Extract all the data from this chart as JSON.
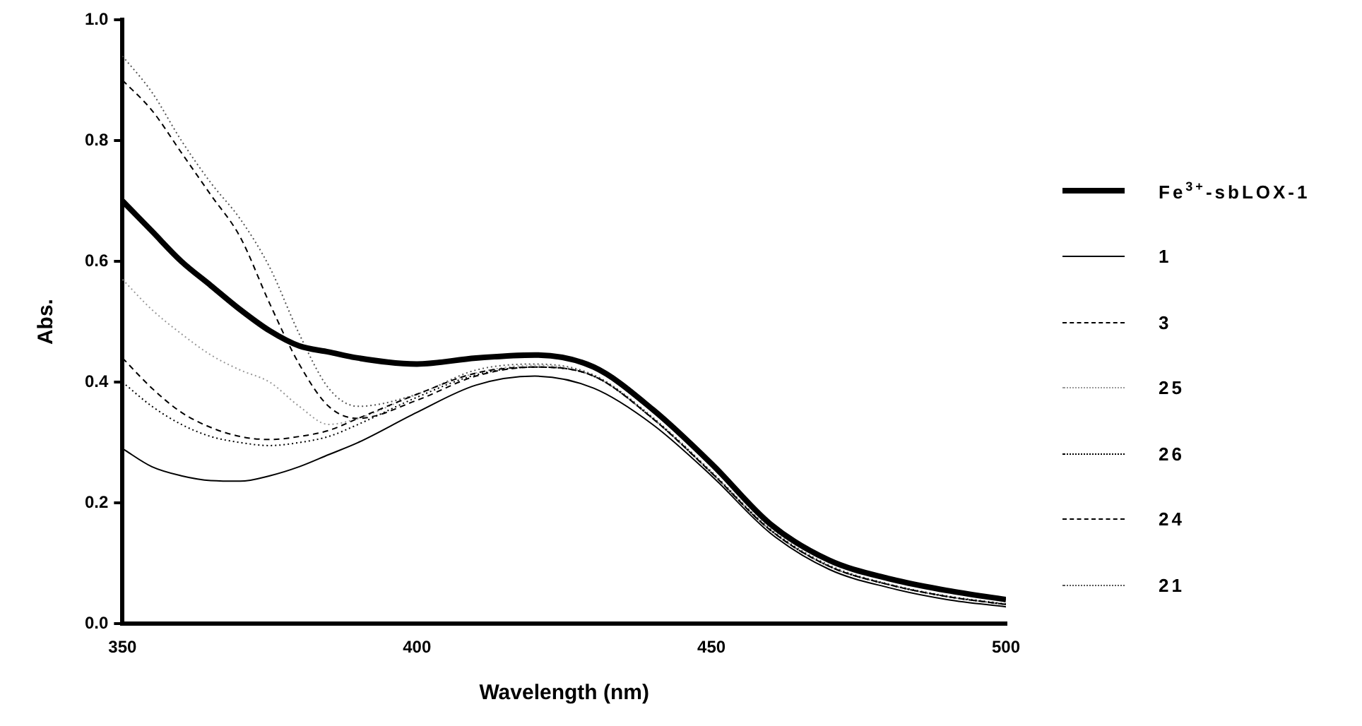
{
  "chart_data": {
    "type": "line",
    "xlabel": "Wavelength (nm)",
    "ylabel": "Abs.",
    "xlim": [
      350,
      500
    ],
    "xticks": [
      350,
      400,
      450,
      500
    ],
    "ylim": [
      0,
      1
    ],
    "yticks": [
      {
        "value": 0,
        "label": "0.0"
      },
      {
        "value": 0.2,
        "label": "0.2"
      },
      {
        "value": 0.4,
        "label": "0.4"
      },
      {
        "value": 0.6,
        "label": "0.6"
      },
      {
        "value": 0.8,
        "label": "0.8"
      },
      {
        "value": 1,
        "label": "1.0"
      }
    ],
    "grid": false,
    "legend": "right",
    "marker": "none",
    "x": [
      350,
      355,
      360,
      365,
      370,
      375,
      380,
      385,
      390,
      400,
      410,
      420,
      430,
      440,
      450,
      460,
      470,
      480,
      490,
      500
    ],
    "series": [
      {
        "name": "Fe$^{3+}$-sbLOX-1",
        "color": "#000000",
        "line_style": "solid",
        "values": [
          0.7,
          0.65,
          0.6,
          0.56,
          0.52,
          0.485,
          0.46,
          0.45,
          0.44,
          0.43,
          0.44,
          0.445,
          0.425,
          0.355,
          0.265,
          0.165,
          0.105,
          0.075,
          0.055,
          0.04
        ]
      },
      {
        "name": "1",
        "color": "#000000",
        "line_style": "solid",
        "values": [
          0.29,
          0.26,
          0.245,
          0.237,
          0.236,
          0.245,
          0.26,
          0.28,
          0.3,
          0.35,
          0.395,
          0.41,
          0.39,
          0.33,
          0.245,
          0.15,
          0.09,
          0.06,
          0.04,
          0.028
        ]
      },
      {
        "name": "3",
        "color": "#000000",
        "line_style": "dashed",
        "values": [
          0.44,
          0.39,
          0.35,
          0.325,
          0.31,
          0.305,
          0.31,
          0.32,
          0.34,
          0.38,
          0.415,
          0.425,
          0.41,
          0.34,
          0.25,
          0.155,
          0.095,
          0.065,
          0.045,
          0.032
        ]
      },
      {
        "name": "25",
        "color": "#999999",
        "line_style": "dotted",
        "values": [
          0.57,
          0.52,
          0.48,
          0.445,
          0.42,
          0.4,
          0.36,
          0.33,
          0.34,
          0.38,
          0.415,
          0.428,
          0.41,
          0.34,
          0.25,
          0.155,
          0.095,
          0.065,
          0.045,
          0.032
        ]
      },
      {
        "name": "26",
        "color": "#000000",
        "line_style": "dotted",
        "values": [
          0.4,
          0.36,
          0.33,
          0.31,
          0.3,
          0.295,
          0.3,
          0.31,
          0.33,
          0.375,
          0.412,
          0.425,
          0.41,
          0.34,
          0.25,
          0.155,
          0.095,
          0.065,
          0.045,
          0.032
        ]
      },
      {
        "name": "24",
        "color": "#000000",
        "line_style": "dashed",
        "values": [
          0.9,
          0.85,
          0.78,
          0.71,
          0.64,
          0.53,
          0.43,
          0.36,
          0.34,
          0.37,
          0.41,
          0.425,
          0.41,
          0.34,
          0.25,
          0.155,
          0.095,
          0.065,
          0.045,
          0.032
        ]
      },
      {
        "name": "21",
        "color": "#555555",
        "line_style": "dotted",
        "values": [
          0.94,
          0.88,
          0.8,
          0.73,
          0.67,
          0.59,
          0.48,
          0.39,
          0.36,
          0.38,
          0.42,
          0.43,
          0.412,
          0.342,
          0.252,
          0.157,
          0.097,
          0.066,
          0.046,
          0.033
        ]
      }
    ]
  }
}
